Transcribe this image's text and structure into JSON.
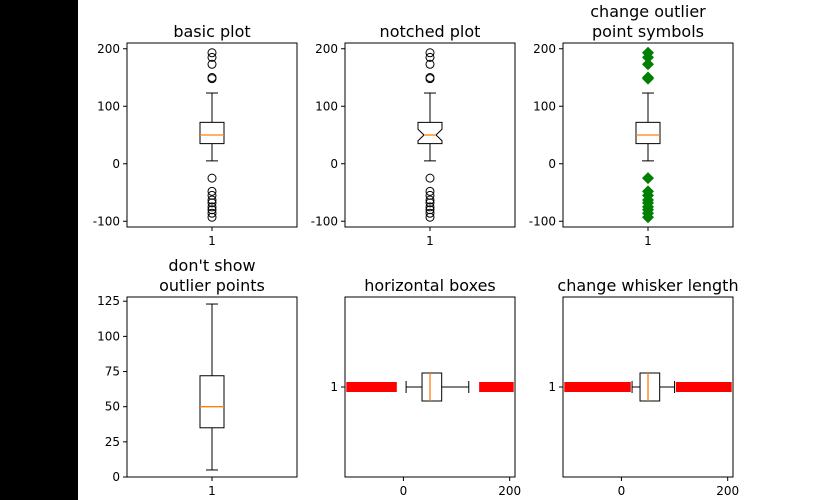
{
  "close_icon": "close-icon",
  "colors": {
    "median": "#ff7f0e",
    "green_outlier": "#008000",
    "red_outlier": "#ff0000",
    "black": "#000000",
    "background": "#ffffff",
    "frame": "#000000"
  },
  "chart_data": [
    {
      "type": "boxplot",
      "title": "basic plot",
      "orientation": "vertical",
      "notch": false,
      "ylim": [
        -110,
        210
      ],
      "yticks": [
        -100,
        0,
        100,
        200
      ],
      "categories": [
        "1"
      ],
      "box": {
        "q1": 35,
        "median": 50,
        "q3": 72,
        "whisker_low": 5,
        "whisker_high": 123
      },
      "outlier_symbol": "circle",
      "outliers": [
        193,
        185,
        173,
        150,
        148,
        -25,
        -48,
        -55,
        -63,
        -68,
        -75,
        -80,
        -86,
        -93
      ]
    },
    {
      "type": "boxplot",
      "title": "notched plot",
      "orientation": "vertical",
      "notch": true,
      "ylim": [
        -110,
        210
      ],
      "yticks": [
        -100,
        0,
        100,
        200
      ],
      "categories": [
        "1"
      ],
      "box": {
        "q1": 35,
        "median": 50,
        "q3": 72,
        "whisker_low": 5,
        "whisker_high": 123
      },
      "notch_range": [
        40,
        60
      ],
      "outlier_symbol": "circle",
      "outliers": [
        193,
        185,
        173,
        150,
        148,
        -25,
        -48,
        -55,
        -63,
        -68,
        -75,
        -80,
        -86,
        -93
      ]
    },
    {
      "type": "boxplot",
      "title": "change outlier\npoint symbols",
      "orientation": "vertical",
      "notch": false,
      "ylim": [
        -110,
        210
      ],
      "yticks": [
        -100,
        0,
        100,
        200
      ],
      "categories": [
        "1"
      ],
      "box": {
        "q1": 35,
        "median": 50,
        "q3": 72,
        "whisker_low": 5,
        "whisker_high": 123
      },
      "outlier_symbol": "green-diamond",
      "outliers": [
        193,
        185,
        173,
        150,
        148,
        -25,
        -48,
        -55,
        -63,
        -68,
        -75,
        -80,
        -86,
        -93
      ]
    },
    {
      "type": "boxplot",
      "title": "don't show\noutlier points",
      "orientation": "vertical",
      "notch": false,
      "ylim": [
        0,
        128
      ],
      "yticks": [
        0,
        25,
        50,
        75,
        100,
        125
      ],
      "categories": [
        "1"
      ],
      "box": {
        "q1": 35,
        "median": 50,
        "q3": 72,
        "whisker_low": 5,
        "whisker_high": 123
      },
      "outlier_symbol": "none",
      "outliers": []
    },
    {
      "type": "boxplot",
      "title": "horizontal boxes",
      "orientation": "horizontal",
      "notch": false,
      "xlim": [
        -110,
        210
      ],
      "xticks": [
        0,
        200
      ],
      "categories": [
        "1"
      ],
      "box": {
        "q1": 35,
        "median": 50,
        "q3": 72,
        "whisker_low": 5,
        "whisker_high": 123
      },
      "outlier_symbol": "red-square",
      "outliers": [
        -100,
        -95,
        -90,
        -85,
        -80,
        -75,
        -70,
        -65,
        -60,
        -55,
        -50,
        -45,
        -40,
        -35,
        -25,
        -20,
        150,
        155,
        160,
        170,
        180,
        185,
        190,
        195,
        200
      ]
    },
    {
      "type": "boxplot",
      "title": "change whisker length",
      "orientation": "horizontal",
      "notch": false,
      "xlim": [
        -110,
        210
      ],
      "xticks": [
        0,
        200
      ],
      "categories": [
        "1"
      ],
      "box": {
        "q1": 35,
        "median": 50,
        "q3": 72,
        "whisker_low": 20,
        "whisker_high": 100
      },
      "outlier_symbol": "red-square",
      "outliers": [
        -100,
        -95,
        -90,
        -85,
        -80,
        -75,
        -70,
        -65,
        -60,
        -55,
        -50,
        -45,
        -40,
        -35,
        -30,
        -25,
        -20,
        -10,
        0,
        5,
        10,
        110,
        115,
        120,
        125,
        130,
        140,
        150,
        155,
        160,
        170,
        180,
        185,
        190,
        195,
        200
      ]
    }
  ]
}
